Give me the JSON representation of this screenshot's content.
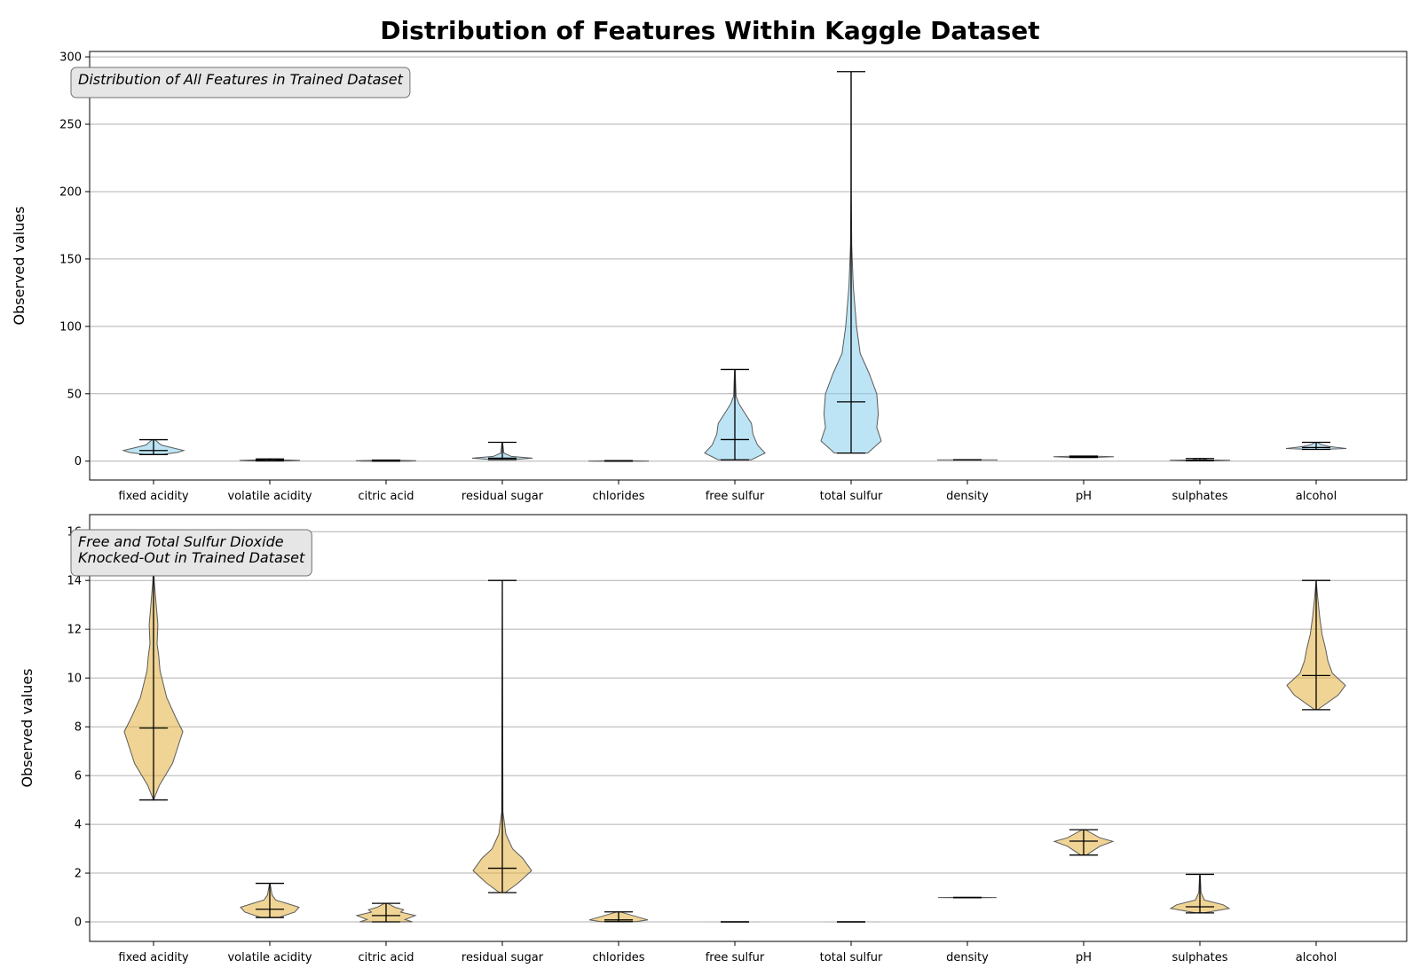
{
  "title": "Distribution of Features Within Kaggle Dataset",
  "colors": {
    "panel1_fill": "#87ceeb",
    "panel2_fill": "#e3b13e",
    "annotation_bg": "#e6e6e6"
  },
  "chart_data": [
    {
      "type": "violin",
      "annotation": [
        "Distribution of All Features in Trained Dataset"
      ],
      "ylabel": "Observed values",
      "ylim": [
        -14,
        304
      ],
      "yticks": [
        0,
        50,
        100,
        150,
        200,
        250,
        300
      ],
      "grid": "y",
      "categories": [
        "fixed acidity",
        "volatile acidity",
        "citric acid",
        "residual sugar",
        "chlorides",
        "free sulfur",
        "total sulfur",
        "density",
        "pH",
        "sulphates",
        "alcohol"
      ],
      "series": [
        {
          "min": 4.9,
          "max": 15.9,
          "median": 7.9,
          "profile": [
            [
              4.9,
              0.3
            ],
            [
              6.5,
              0.8
            ],
            [
              7.9,
              1.0
            ],
            [
              10,
              0.6
            ],
            [
              12,
              0.25
            ],
            [
              15.9,
              0.05
            ]
          ]
        },
        {
          "min": 0.18,
          "max": 1.58,
          "median": 0.52,
          "profile": [
            [
              0.18,
              0.5
            ],
            [
              0.52,
              1.0
            ],
            [
              1.0,
              0.4
            ],
            [
              1.58,
              0.05
            ]
          ]
        },
        {
          "min": 0.0,
          "max": 0.76,
          "median": 0.26,
          "profile": [
            [
              0,
              0.8
            ],
            [
              0.26,
              1.0
            ],
            [
              0.76,
              0.1
            ]
          ]
        },
        {
          "min": 1.2,
          "max": 14.0,
          "median": 2.2,
          "profile": [
            [
              1.2,
              0.4
            ],
            [
              2.2,
              1.0
            ],
            [
              3.5,
              0.3
            ],
            [
              6,
              0.05
            ],
            [
              14,
              0.01
            ]
          ]
        },
        {
          "min": 0.012,
          "max": 0.41,
          "median": 0.08,
          "profile": [
            [
              0.012,
              0.8
            ],
            [
              0.08,
              1.0
            ],
            [
              0.41,
              0.05
            ]
          ]
        },
        {
          "min": 1,
          "max": 68,
          "median": 16,
          "profile": [
            [
              1,
              0.55
            ],
            [
              6,
              1.0
            ],
            [
              12,
              0.75
            ],
            [
              20,
              0.6
            ],
            [
              28,
              0.55
            ],
            [
              35,
              0.35
            ],
            [
              42,
              0.15
            ],
            [
              48,
              0.04
            ],
            [
              68,
              0.01
            ]
          ]
        },
        {
          "min": 6,
          "max": 289,
          "median": 44,
          "profile": [
            [
              6,
              0.55
            ],
            [
              15,
              1.0
            ],
            [
              25,
              0.85
            ],
            [
              35,
              0.9
            ],
            [
              50,
              0.85
            ],
            [
              65,
              0.6
            ],
            [
              80,
              0.3
            ],
            [
              100,
              0.18
            ],
            [
              130,
              0.07
            ],
            [
              160,
              0.02
            ],
            [
              200,
              0.005
            ],
            [
              289,
              0.002
            ]
          ]
        },
        {
          "min": 0.9907,
          "max": 1.0032,
          "median": 0.9968,
          "profile": [
            [
              0.9907,
              0.5
            ],
            [
              0.9968,
              1.0
            ],
            [
              1.0032,
              0.5
            ]
          ]
        },
        {
          "min": 2.74,
          "max": 3.78,
          "median": 3.31,
          "profile": [
            [
              2.74,
              0.3
            ],
            [
              3.31,
              1.0
            ],
            [
              3.78,
              0.2
            ]
          ]
        },
        {
          "min": 0.37,
          "max": 1.95,
          "median": 0.62,
          "profile": [
            [
              0.37,
              0.3
            ],
            [
              0.62,
              1.0
            ],
            [
              0.9,
              0.25
            ],
            [
              1.95,
              0.02
            ]
          ]
        },
        {
          "min": 8.7,
          "max": 14.0,
          "median": 10.1,
          "profile": [
            [
              8.7,
              0.2
            ],
            [
              9.4,
              1.0
            ],
            [
              10.1,
              0.7
            ],
            [
              11,
              0.4
            ],
            [
              12.5,
              0.15
            ],
            [
              14,
              0.03
            ]
          ]
        }
      ]
    },
    {
      "type": "violin",
      "annotation": [
        "Free and Total Sulfur Dioxide",
        "Knocked-Out in Trained Dataset"
      ],
      "ylabel": "Observed values",
      "ylim": [
        -0.8,
        16.7
      ],
      "yticks": [
        0,
        2,
        4,
        6,
        8,
        10,
        12,
        14,
        16
      ],
      "grid": "y",
      "categories": [
        "fixed acidity",
        "volatile acidity",
        "citric acid",
        "residual sugar",
        "chlorides",
        "free sulfur",
        "total sulfur",
        "density",
        "pH",
        "sulphates",
        "alcohol"
      ],
      "series": [
        {
          "min": 5.0,
          "max": 15.9,
          "median": 7.95,
          "profile": [
            [
              5.0,
              0.0
            ],
            [
              5.6,
              0.2
            ],
            [
              6.5,
              0.65
            ],
            [
              7.8,
              1.0
            ],
            [
              8.4,
              0.75
            ],
            [
              9.2,
              0.45
            ],
            [
              10.3,
              0.22
            ],
            [
              10.9,
              0.18
            ],
            [
              11.4,
              0.12
            ],
            [
              12.2,
              0.15
            ],
            [
              13,
              0.09
            ],
            [
              14,
              0.02
            ],
            [
              15.9,
              0.0
            ]
          ]
        },
        {
          "min": 0.18,
          "max": 1.58,
          "median": 0.52,
          "profile": [
            [
              0.18,
              0.3
            ],
            [
              0.4,
              0.85
            ],
            [
              0.6,
              1.0
            ],
            [
              0.75,
              0.6
            ],
            [
              0.9,
              0.2
            ],
            [
              1.1,
              0.08
            ],
            [
              1.58,
              0.01
            ]
          ]
        },
        {
          "min": 0.0,
          "max": 0.76,
          "median": 0.26,
          "profile": [
            [
              0.0,
              0.9
            ],
            [
              0.1,
              0.65
            ],
            [
              0.26,
              1.0
            ],
            [
              0.4,
              0.5
            ],
            [
              0.5,
              0.6
            ],
            [
              0.6,
              0.3
            ],
            [
              0.76,
              0.05
            ]
          ]
        },
        {
          "min": 1.2,
          "max": 14.0,
          "median": 2.2,
          "profile": [
            [
              1.2,
              0.1
            ],
            [
              1.6,
              0.55
            ],
            [
              2.1,
              1.0
            ],
            [
              2.6,
              0.7
            ],
            [
              3.0,
              0.35
            ],
            [
              3.6,
              0.12
            ],
            [
              4.5,
              0.02
            ],
            [
              14.0,
              0.0
            ]
          ]
        },
        {
          "min": 0.01,
          "max": 0.41,
          "median": 0.08,
          "profile": [
            [
              0.01,
              0.6
            ],
            [
              0.08,
              1.0
            ],
            [
              0.41,
              0.05
            ]
          ]
        },
        {
          "min": 0.0,
          "max": 0.0,
          "median": 0.0,
          "profile": []
        },
        {
          "min": 0.0,
          "max": 0.0,
          "median": 0.0,
          "profile": []
        },
        {
          "min": 0.9907,
          "max": 1.0032,
          "median": 0.9968,
          "profile": [
            [
              0.9907,
              0.5
            ],
            [
              0.9968,
              1.0
            ],
            [
              1.0032,
              0.5
            ]
          ]
        },
        {
          "min": 2.74,
          "max": 3.78,
          "median": 3.31,
          "profile": [
            [
              2.74,
              0.1
            ],
            [
              3.1,
              0.55
            ],
            [
              3.3,
              1.0
            ],
            [
              3.45,
              0.55
            ],
            [
              3.78,
              0.05
            ]
          ]
        },
        {
          "min": 0.37,
          "max": 1.95,
          "median": 0.62,
          "profile": [
            [
              0.37,
              0.15
            ],
            [
              0.55,
              1.0
            ],
            [
              0.7,
              0.8
            ],
            [
              0.9,
              0.15
            ],
            [
              1.2,
              0.04
            ],
            [
              1.95,
              0.01
            ]
          ]
        },
        {
          "min": 8.7,
          "max": 14.0,
          "median": 10.1,
          "profile": [
            [
              8.7,
              0.05
            ],
            [
              9.3,
              0.75
            ],
            [
              9.7,
              1.0
            ],
            [
              10.2,
              0.55
            ],
            [
              10.7,
              0.4
            ],
            [
              11.2,
              0.32
            ],
            [
              11.8,
              0.2
            ],
            [
              12.5,
              0.12
            ],
            [
              13.2,
              0.06
            ],
            [
              14.0,
              0.0
            ]
          ]
        }
      ]
    }
  ]
}
